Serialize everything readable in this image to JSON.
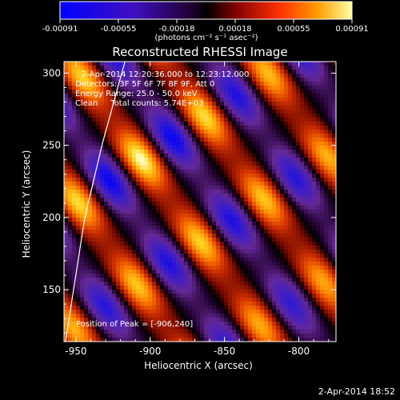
{
  "colorbar": {
    "ticks": [
      "-0.00091",
      "-0.00055",
      "-0.00018",
      "0.00018",
      "0.00055",
      "0.00091"
    ],
    "unit_label": "(photons cm⁻² s⁻¹ asec⁻²)"
  },
  "chart_data": {
    "type": "heatmap",
    "title": "Reconstructed RHESSI Image",
    "xlabel": "Heliocentric X (arcsec)",
    "ylabel": "Heliocentric Y (arcsec)",
    "xlim": [
      -958,
      -775
    ],
    "ylim": [
      114,
      308
    ],
    "zlim": [
      -0.00091,
      0.00091
    ],
    "x_ticks": [
      "-950",
      "-900",
      "-850",
      "-800"
    ],
    "y_ticks": [
      "150",
      "200",
      "250",
      "300"
    ],
    "x_tick_values": [
      -950,
      -900,
      -850,
      -800
    ],
    "y_tick_values": [
      150,
      200,
      250,
      300
    ],
    "colormap": [
      "#0000ff",
      "#3a1fd0",
      "#6a2a9a",
      "#000000",
      "#7a0a00",
      "#d43000",
      "#ff7a00",
      "#ffd700",
      "#ffffcc"
    ],
    "limb_line": [
      [
        -957,
        114
      ],
      [
        -944,
        200
      ],
      [
        -932,
        252
      ],
      [
        -917,
        308
      ]
    ],
    "peak": [
      -906,
      240
    ],
    "annotations": [
      "2-Apr-2014 12:20:36.000 to 12:23:12.000",
      "Detectors: 3F 5F 6F 7F 8F 9F, Att 0",
      "Energy Range: 25.0 - 50.0 keV",
      "Clean     Total counts: 5.74E+03"
    ],
    "peak_label": "Position of Peak = [-906,240]"
  },
  "footer_timestamp": "2-Apr-2014 18:52"
}
